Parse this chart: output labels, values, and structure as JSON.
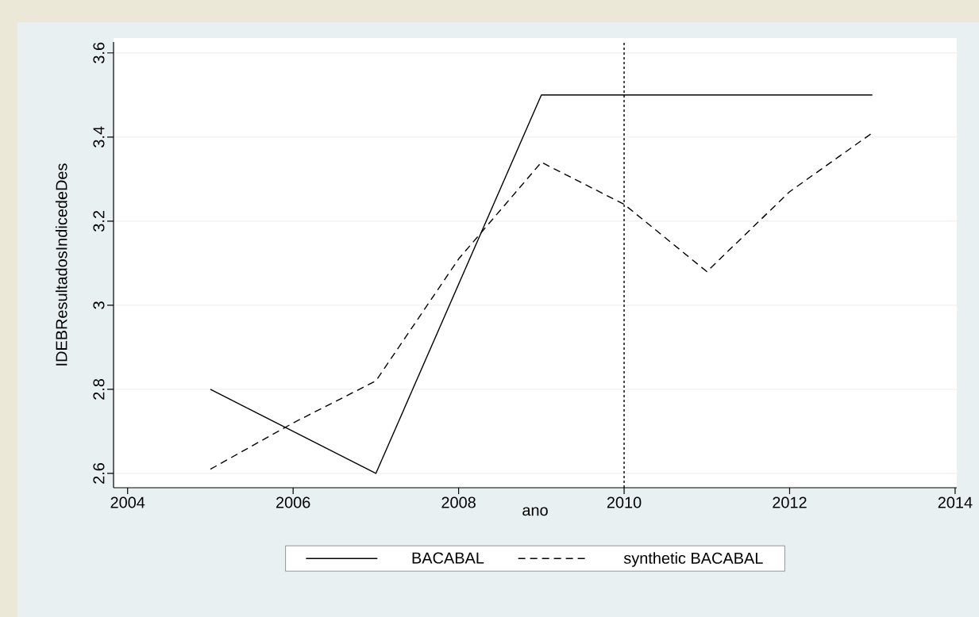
{
  "chart_data": {
    "type": "line",
    "xlabel": "ano",
    "ylabel": "IDEBResultadosIndicedeDes",
    "series": [
      {
        "name": "BACABAL",
        "color": "#000000",
        "line_style": "solid",
        "x": [
          2005,
          2007,
          2009,
          2011,
          2013
        ],
        "values": [
          2.8,
          2.6,
          3.5,
          3.5,
          3.5
        ]
      },
      {
        "name": "synthetic BACABAL",
        "color": "#000000",
        "line_style": "dashed",
        "x": [
          2005,
          2006,
          2007,
          2008,
          2009,
          2010,
          2011,
          2012,
          2013
        ],
        "values": [
          2.61,
          2.72,
          2.82,
          3.11,
          3.34,
          3.24,
          3.08,
          3.27,
          3.41
        ]
      }
    ],
    "xlim": [
      2003.83,
      2014.02
    ],
    "ylim": [
      2.566,
      3.626
    ],
    "xticks": [
      2004,
      2006,
      2008,
      2010,
      2012,
      2014
    ],
    "yticks": [
      2.6,
      2.8,
      3,
      3.2,
      3.4,
      3.6
    ],
    "ref_lines": [
      {
        "axis": "x",
        "value": 2010,
        "color": "#000000",
        "line_style": "dotted"
      }
    ],
    "grid": "y",
    "legend": "bottom",
    "marker": "none"
  }
}
